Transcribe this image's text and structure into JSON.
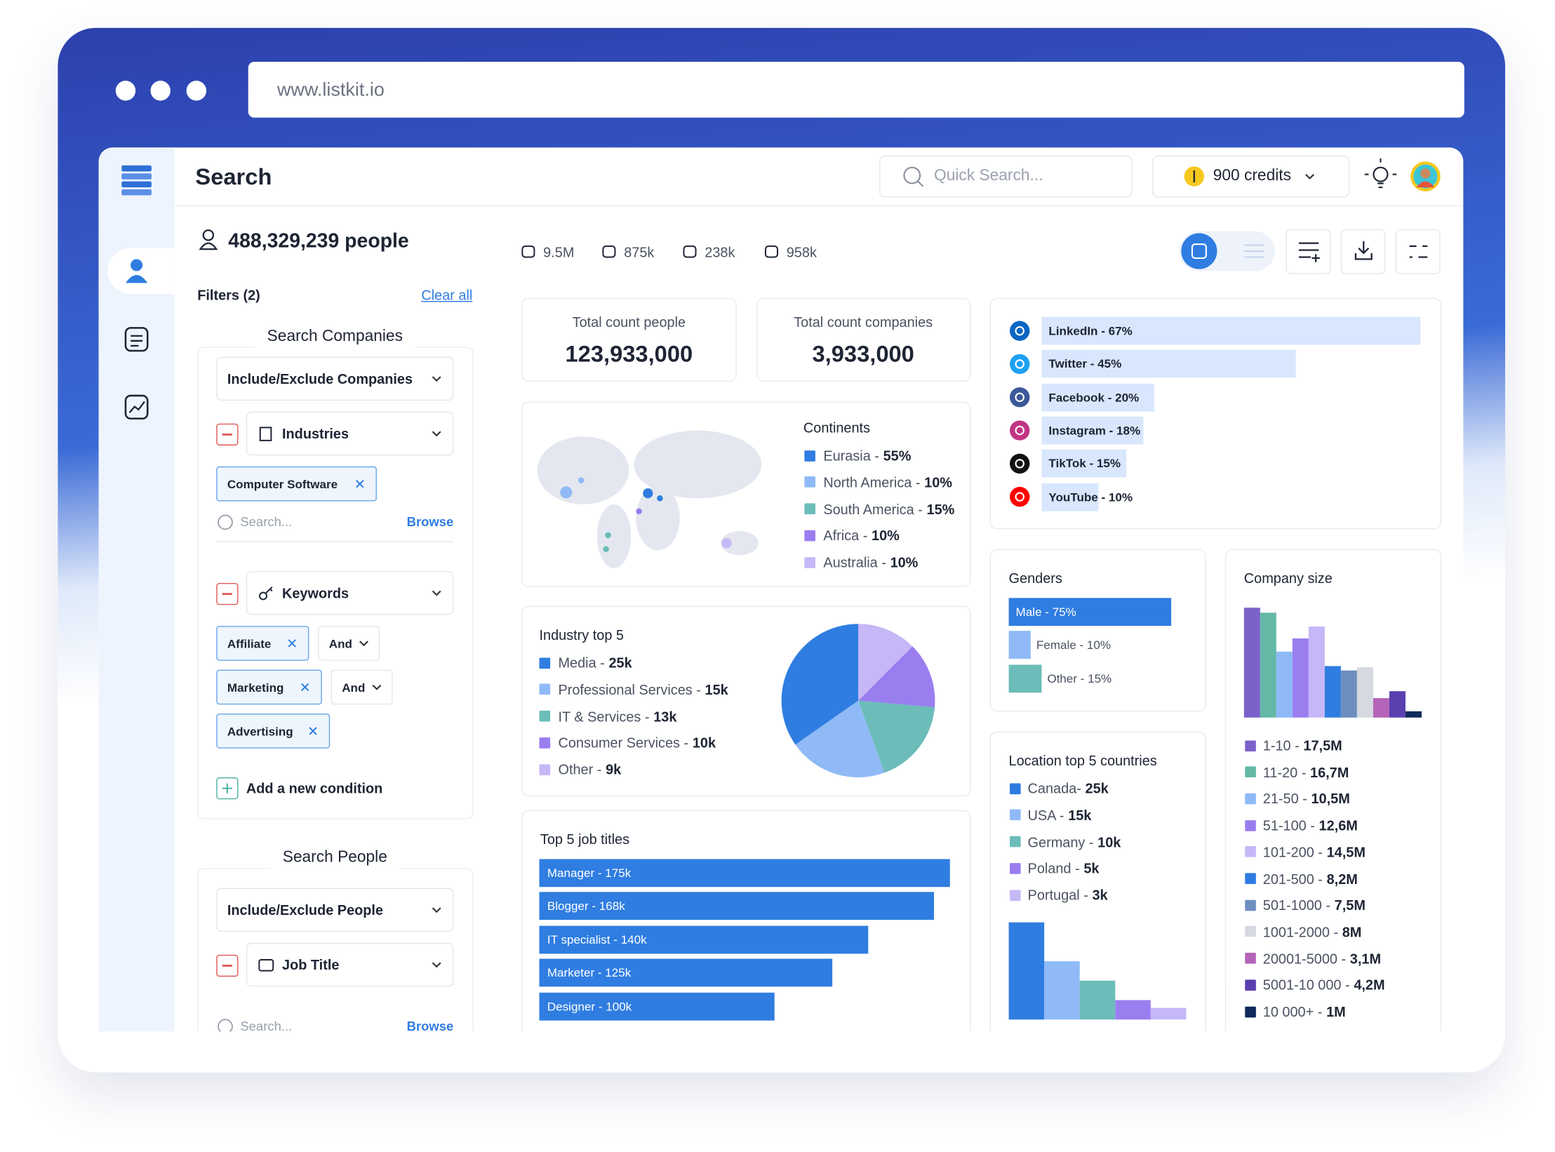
{
  "browser": {
    "url": "www.listkit.io"
  },
  "header": {
    "title": "Search",
    "search_placeholder": "Quick Search...",
    "credits": "900 credits"
  },
  "filters_panel": {
    "people_count": "488,329,239 people",
    "filters": "Filters (2)",
    "clear_all": "Clear all",
    "companies": {
      "title": "Search Companies",
      "include": "Include/Exclude Companies",
      "industries": "Industries",
      "industry_tags": [
        "Computer Software"
      ],
      "search_placeholder": "Search...",
      "browse": "Browse",
      "keywords": "Keywords",
      "keyword_tags": [
        {
          "text": "Affiliate",
          "operator": "And"
        },
        {
          "text": "Marketing",
          "operator": "And"
        },
        {
          "text": "Advertising"
        }
      ],
      "add_condition": "Add a new condition"
    },
    "people": {
      "title": "Search People",
      "include": "Include/Exclude People",
      "job_title": "Job Title",
      "search_placeholder": "Search...",
      "browse": "Browse"
    }
  },
  "stats": [
    "9.5M",
    "875k",
    "238k",
    "958k"
  ],
  "totals": [
    {
      "label": "Total count people",
      "value": "123,933,000"
    },
    {
      "label": "Total count companies",
      "value": "3,933,000"
    }
  ],
  "continents": {
    "title": "Continents",
    "items": [
      {
        "name": "Eurasia -",
        "value": "55%",
        "color": "#2f7de1"
      },
      {
        "name": "North America -",
        "value": "10%",
        "color": "#8fbaf7"
      },
      {
        "name": "South America -",
        "value": "15%",
        "color": "#6cbcb9"
      },
      {
        "name": "Africa -",
        "value": "10%",
        "color": "#9a7ef0"
      },
      {
        "name": "Australia -",
        "value": "10%",
        "color": "#c6b7f7"
      }
    ]
  },
  "industry": {
    "title": "Industry top 5",
    "items": [
      {
        "name": "Media -",
        "value_label": "25k",
        "value": 25,
        "color": "#2f7de1"
      },
      {
        "name": "Professional Services -",
        "value_label": "15k",
        "value": 15,
        "color": "#8fbaf7"
      },
      {
        "name": "IT & Services -",
        "value_label": "13k",
        "value": 13,
        "color": "#6cbcb9"
      },
      {
        "name": "Consumer Services -",
        "value_label": "10k",
        "value": 10,
        "color": "#9a7ef0"
      },
      {
        "name": "Other -",
        "value_label": "9k",
        "value": 9,
        "color": "#c6b7f7"
      }
    ]
  },
  "jobs": {
    "title": "Top 5 job titles",
    "color": "#2f7de1",
    "items": [
      {
        "label": "Manager - 175k",
        "value": 175
      },
      {
        "label": "Blogger - 168k",
        "value": 168
      },
      {
        "label": "IT specialist - 140k",
        "value": 140
      },
      {
        "label": "Marketer - 125k",
        "value": 125
      },
      {
        "label": "Designer - 100k",
        "value": 100
      }
    ]
  },
  "socials": {
    "color": "#d8e7fd",
    "items": [
      {
        "label": "LinkedIn - 67%",
        "value": 67,
        "icon_color": "#0a66c2"
      },
      {
        "label": "Twitter - 45%",
        "value": 45,
        "icon_color": "#1da1f2"
      },
      {
        "label": "Facebook - 20%",
        "value": 20,
        "icon_color": "#3b5998"
      },
      {
        "label": "Instagram - 18%",
        "value": 18,
        "icon_color": "#c13584"
      },
      {
        "label": "TikTok - 15%",
        "value": 15,
        "icon_color": "#111111"
      },
      {
        "label": "YouTube - 10%",
        "value": 10,
        "icon_color": "#ff0000"
      }
    ]
  },
  "genders": {
    "title": "Genders",
    "items": [
      {
        "label": "Male - 75%",
        "value": 75,
        "color": "#2f7de1"
      },
      {
        "label": "Female - 10%",
        "value": 10,
        "color": "#8fbaf7"
      },
      {
        "label": "Other - 15%",
        "value": 15,
        "color": "#6cbcb9"
      }
    ]
  },
  "locations": {
    "title": "Location top 5 countries",
    "items": [
      {
        "name": "Canada-",
        "value_label": "25k",
        "value": 25,
        "color": "#2f7de1"
      },
      {
        "name": "USA -",
        "value_label": "15k",
        "value": 15,
        "color": "#8fbaf7"
      },
      {
        "name": "Germany -",
        "value_label": "10k",
        "value": 10,
        "color": "#6cbcb9"
      },
      {
        "name": "Poland -",
        "value_label": "5k",
        "value": 5,
        "color": "#9a7ef0"
      },
      {
        "name": "Portugal -",
        "value_label": "3k",
        "value": 3,
        "color": "#c6b7f7"
      }
    ]
  },
  "company_size": {
    "title": "Company size",
    "items": [
      {
        "name": "1-10 -",
        "value_label": "17,5M",
        "value": 17.5,
        "color": "#7b62c9"
      },
      {
        "name": "11-20 -",
        "value_label": "16,7M",
        "value": 16.7,
        "color": "#63b8a6"
      },
      {
        "name": "21-50 -",
        "value_label": "10,5M",
        "value": 10.5,
        "color": "#8fbaf7"
      },
      {
        "name": "51-100 -",
        "value_label": "12,6M",
        "value": 12.6,
        "color": "#9a7ef0"
      },
      {
        "name": "101-200 -",
        "value_label": "14,5M",
        "value": 14.5,
        "color": "#c6b7f7"
      },
      {
        "name": "201-500 -",
        "value_label": "8,2M",
        "value": 8.2,
        "color": "#2f7de1"
      },
      {
        "name": "501-1000 -",
        "value_label": "7,5M",
        "value": 7.5,
        "color": "#6d8fbf"
      },
      {
        "name": "1001-2000 -",
        "value_label": "8M",
        "value": 8,
        "color": "#d6d9e0"
      },
      {
        "name": "20001-5000 -",
        "value_label": "3,1M",
        "value": 3.1,
        "color": "#b464b8"
      },
      {
        "name": "5001-10 000 -",
        "value_label": "4,2M",
        "value": 4.2,
        "color": "#5a3fb0"
      },
      {
        "name": "10 000+ -",
        "value_label": "1M",
        "value": 1,
        "color": "#0f2a5c"
      }
    ]
  }
}
